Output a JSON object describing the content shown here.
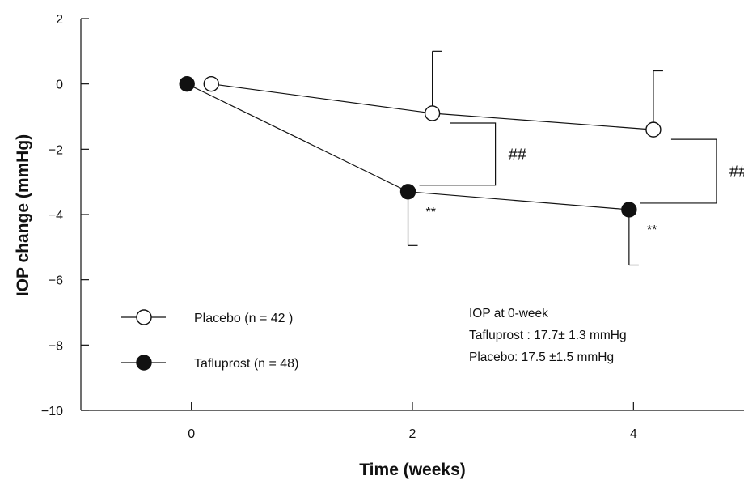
{
  "chart_data": {
    "type": "line",
    "xlabel": "Time (weeks)",
    "ylabel": "IOP change (mmHg)",
    "xticks": [
      0,
      2,
      4
    ],
    "yticks": [
      2,
      0,
      -2,
      -4,
      -6,
      -8,
      -10
    ],
    "xlim": [
      -1,
      5
    ],
    "ylim": [
      -10,
      2
    ],
    "series": [
      {
        "name": "Placebo (n = 42 )",
        "marker": "open-circle",
        "x": [
          0,
          2,
          4
        ],
        "values": [
          0,
          -0.9,
          -1.4
        ],
        "error_upper": [
          null,
          1.0,
          0.4
        ],
        "error_lower": [
          null,
          null,
          null
        ]
      },
      {
        "name": "Tafluprost (n = 48)",
        "marker": "filled-circle",
        "x": [
          0,
          2,
          4
        ],
        "values": [
          0,
          -3.3,
          -3.85
        ],
        "error_upper": [
          null,
          null,
          null
        ],
        "error_lower": [
          null,
          -4.95,
          -5.55
        ]
      }
    ],
    "annotations": {
      "significance_markers": [
        "**",
        "**"
      ],
      "between_group_markers": [
        "##",
        "##"
      ],
      "note_lines": [
        "IOP at 0-week",
        "Tafluprost : 17.7± 1.3 mmHg",
        "Placebo: 17.5 ±1.5 mmHg"
      ]
    },
    "legend_position": "bottom-left",
    "grid": false,
    "colors": {
      "line": "#111111",
      "filled_marker": "#111111",
      "open_marker": "#ffffff"
    }
  }
}
